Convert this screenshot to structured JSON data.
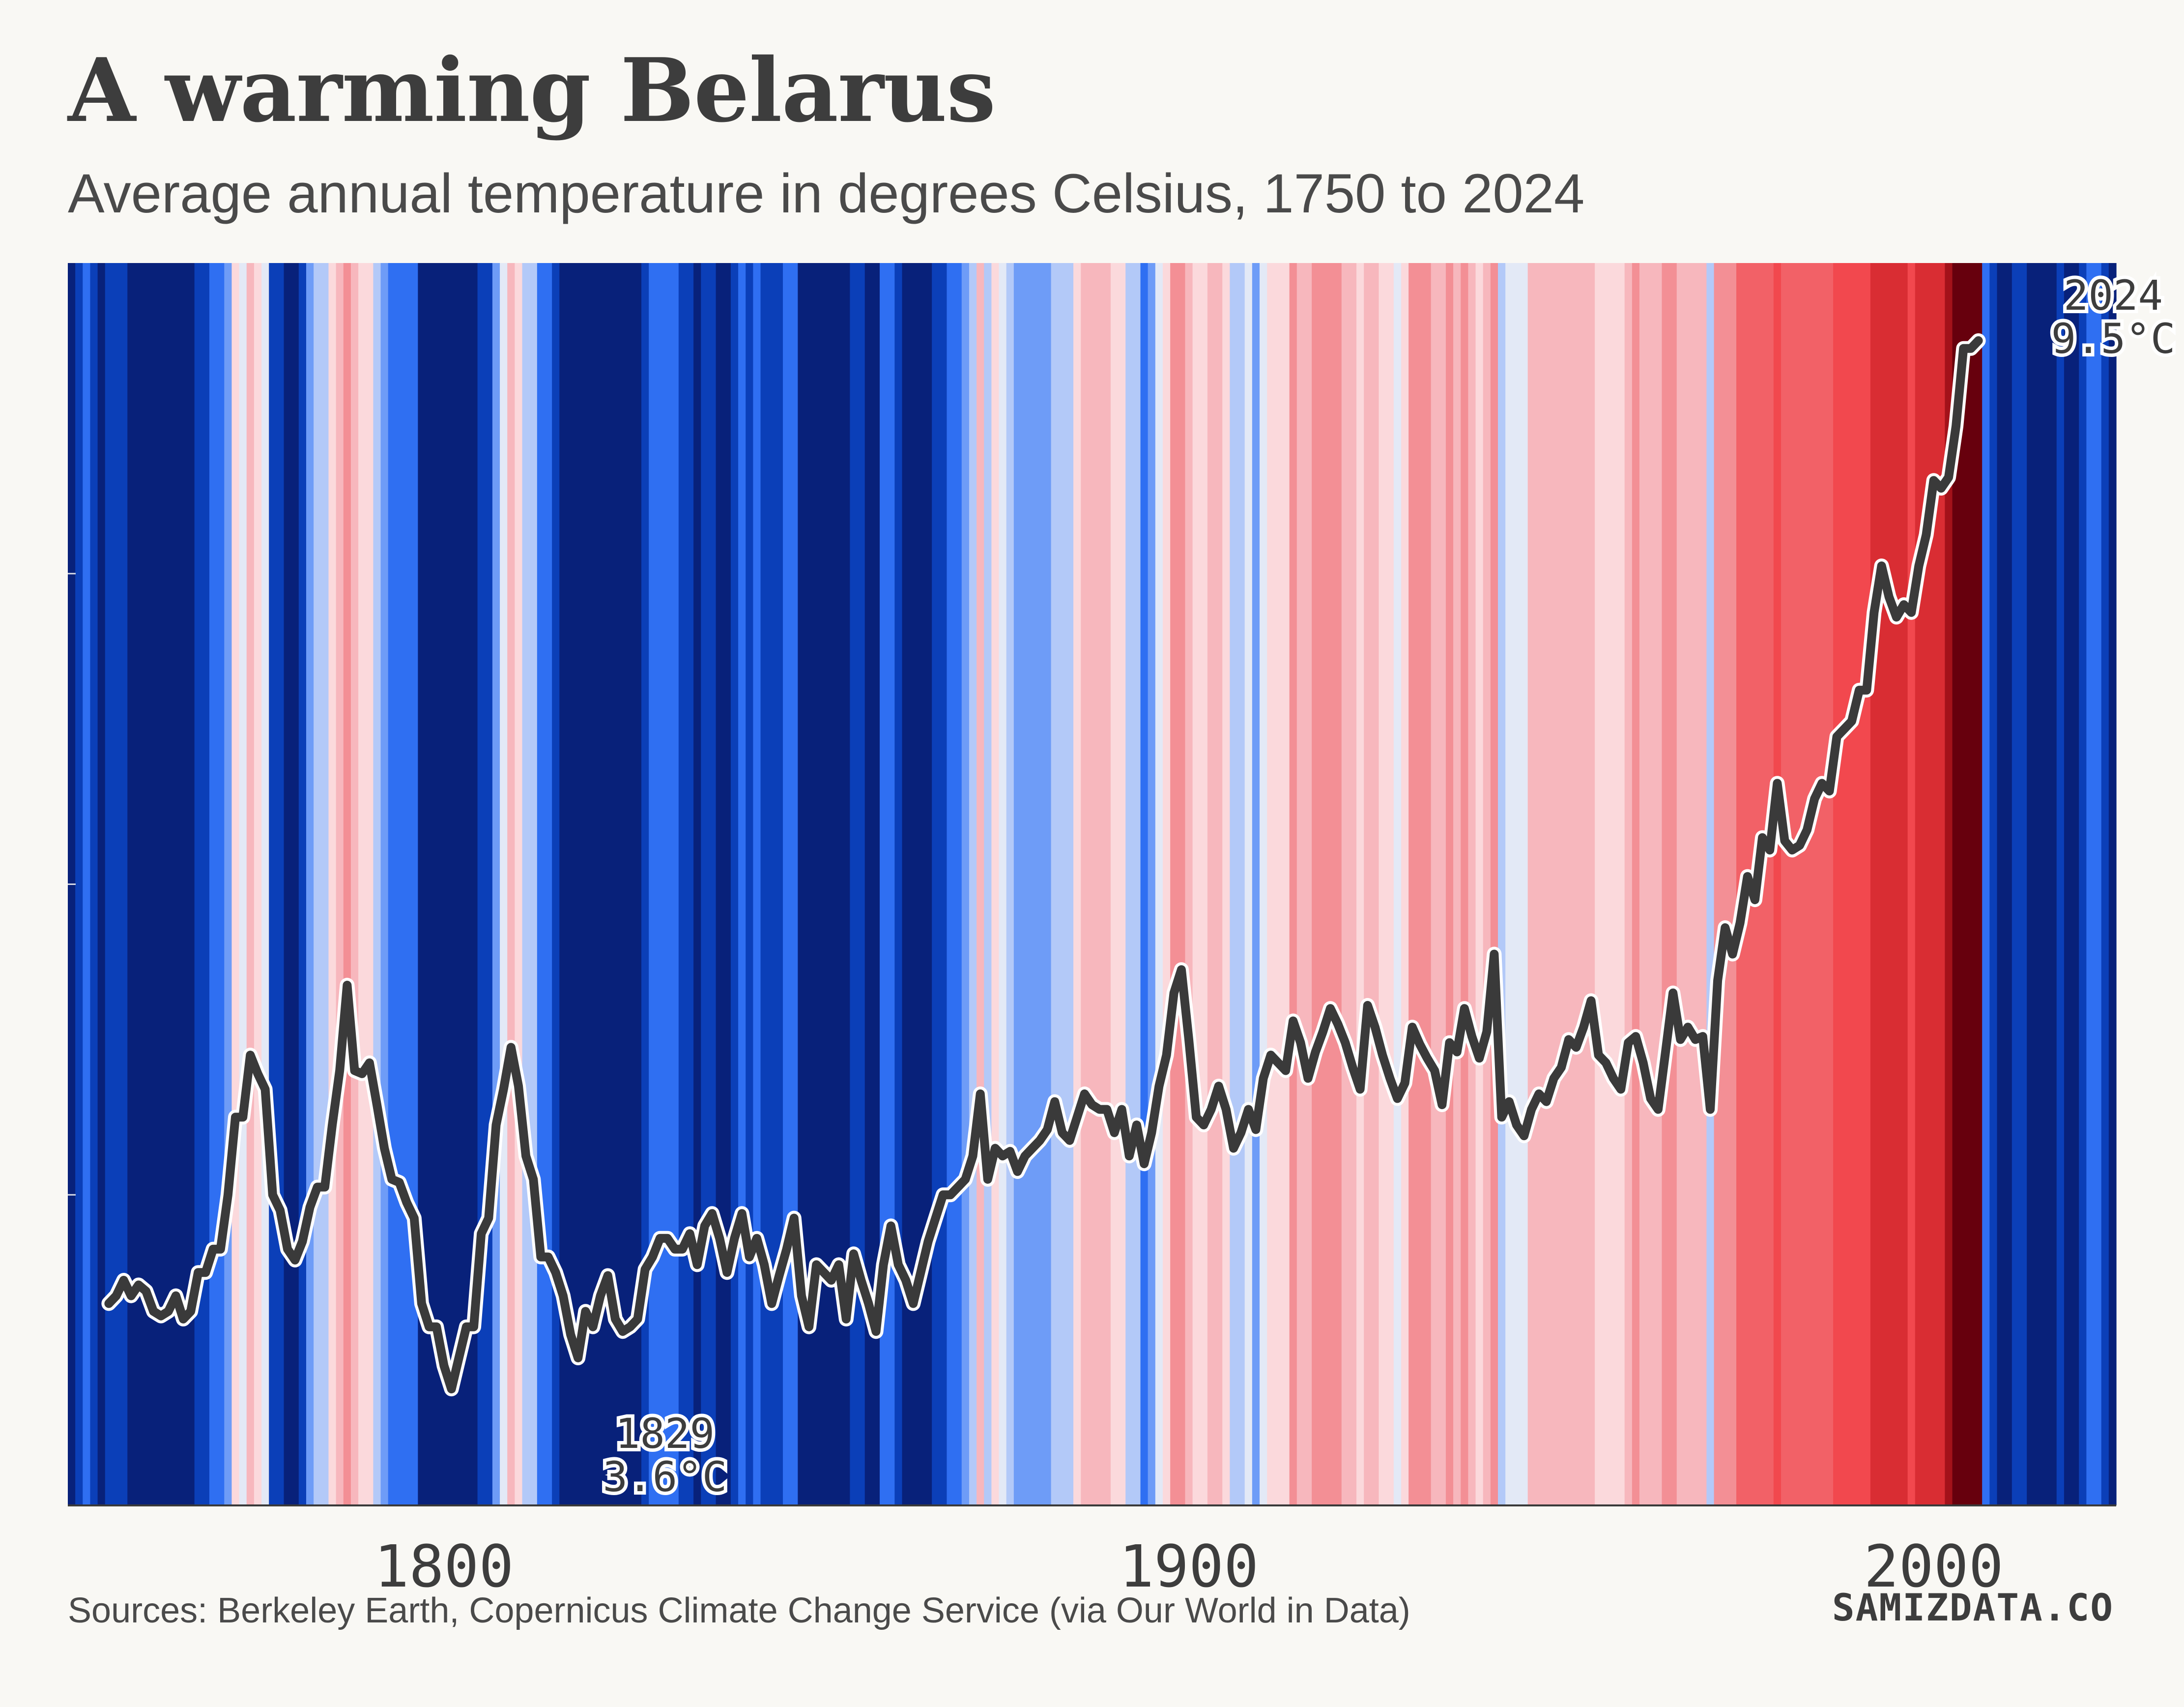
{
  "header": {
    "title": "A warming Belarus",
    "subtitle": "Average annual temperature in degrees Celsius, 1750 to 2024"
  },
  "footer": {
    "source": "Sources: Berkeley Earth, Copernicus Climate Change Service (via Our World in Data)",
    "brand": "SAMIZDATA.CO"
  },
  "chart_data": {
    "type": "line",
    "background": "warming stripes (one colored stripe per year)",
    "x_range": [
      1750,
      2024
    ],
    "ylim": [
      2.0,
      10.0
    ],
    "grid": false,
    "x_ticks": [
      1800,
      1900,
      2000
    ],
    "colors": {
      "line": "#3a3a3a",
      "line_halo": "#ffffff",
      "cold_extreme": "#08217a",
      "neutral": "#f2f2f2",
      "warm_extreme": "#67000d"
    },
    "annotations": [
      {
        "year": "1829",
        "value": "3.6°C",
        "x": 1829,
        "y": 3.6
      },
      {
        "year": "2024",
        "value": "9.5°C",
        "x": 2024,
        "y": 9.5
      }
    ],
    "series": [
      {
        "x_start": 1755,
        "x_end": 2024,
        "values": [
          3.3,
          3.35,
          3.45,
          3.35,
          3.42,
          3.38,
          3.25,
          3.22,
          3.25,
          3.35,
          3.2,
          3.25,
          3.5,
          3.5,
          3.65,
          3.65,
          4.0,
          4.5,
          4.5,
          4.9,
          4.78,
          4.68,
          4.0,
          3.9,
          3.65,
          3.58,
          3.7,
          3.92,
          4.05,
          4.05,
          4.45,
          4.8,
          5.35,
          4.8,
          4.78,
          4.85,
          4.58,
          4.3,
          4.1,
          4.08,
          3.95,
          3.85,
          3.3,
          3.15,
          3.15,
          2.9,
          2.75,
          2.95,
          3.15,
          3.15,
          3.75,
          3.85,
          4.45,
          4.68,
          4.95,
          4.7,
          4.25,
          4.1,
          3.6,
          3.6,
          3.5,
          3.35,
          3.1,
          2.95,
          3.25,
          3.15,
          3.35,
          3.48,
          3.2,
          3.12,
          3.15,
          3.2,
          3.52,
          3.6,
          3.72,
          3.72,
          3.65,
          3.65,
          3.75,
          3.55,
          3.8,
          3.88,
          3.72,
          3.5,
          3.72,
          3.88,
          3.6,
          3.72,
          3.55,
          3.3,
          3.48,
          3.65,
          3.85,
          3.35,
          3.15,
          3.55,
          3.5,
          3.45,
          3.55,
          3.2,
          3.62,
          3.45,
          3.3,
          3.12,
          3.55,
          3.8,
          3.55,
          3.45,
          3.3,
          3.5,
          3.7,
          3.85,
          4.0,
          4.0,
          4.05,
          4.1,
          4.25,
          4.65,
          4.1,
          4.3,
          4.25,
          4.28,
          4.15,
          4.25,
          4.3,
          4.35,
          4.42,
          4.6,
          4.4,
          4.35,
          4.5,
          4.65,
          4.58,
          4.55,
          4.55,
          4.4,
          4.55,
          4.25,
          4.45,
          4.2,
          4.4,
          4.7,
          4.9,
          5.3,
          5.45,
          5.0,
          4.5,
          4.45,
          4.55,
          4.7,
          4.55,
          4.3,
          4.4,
          4.55,
          4.42,
          4.75,
          4.9,
          4.85,
          4.8,
          5.12,
          4.98,
          4.75,
          4.92,
          5.05,
          5.2,
          5.1,
          4.98,
          4.82,
          4.68,
          5.22,
          5.08,
          4.9,
          4.75,
          4.62,
          4.72,
          5.08,
          4.97,
          4.88,
          4.8,
          4.58,
          4.98,
          4.92,
          5.2,
          5.02,
          4.88,
          5.05,
          5.55,
          4.5,
          4.6,
          4.45,
          4.38,
          4.55,
          4.65,
          4.6,
          4.75,
          4.82,
          5.0,
          4.95,
          5.08,
          5.25,
          4.9,
          4.85,
          4.75,
          4.68,
          4.98,
          5.02,
          4.85,
          4.62,
          4.55,
          4.92,
          5.3,
          5.0,
          5.08,
          5.0,
          5.02,
          4.55,
          5.38,
          5.72,
          5.55,
          5.75,
          6.05,
          5.9,
          6.3,
          6.22,
          6.65,
          6.28,
          6.22,
          6.25,
          6.35,
          6.55,
          6.65,
          6.6,
          6.95,
          7.0,
          7.05,
          7.25,
          7.25,
          7.75,
          8.05,
          7.85,
          7.72,
          7.8,
          7.75,
          8.05,
          8.25,
          8.6,
          8.55,
          8.62,
          8.95,
          9.45,
          9.45,
          9.5
        ]
      }
    ]
  }
}
